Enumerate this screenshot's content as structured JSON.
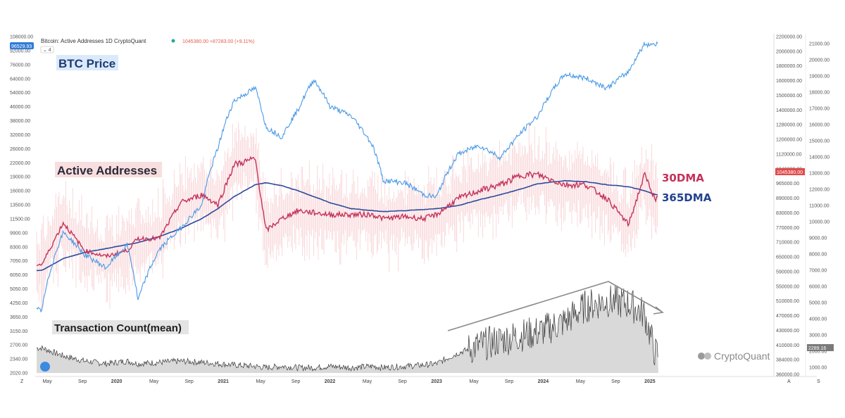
{
  "header": {
    "title": "Bitcoin: Active Addresses   1D   CryptoQuant",
    "change": "1045380.00 +87283.00 (+9.11%)",
    "price_badge": "96529.93",
    "indicator_count": "⌄ 4"
  },
  "labels": {
    "btc_price": "BTC Price",
    "active_addresses": "Active Addresses",
    "transaction_count": "Transaction Count(mean)",
    "ma30": "30DMA",
    "ma365": "365DMA"
  },
  "right_badges": {
    "active_addresses": "1045380.00",
    "transaction_count": "2289.16"
  },
  "watermark": "CryptoQuant",
  "footer": {
    "left": "Z",
    "auto": "A",
    "log": "S"
  },
  "colors": {
    "btc": "#4a9ae6",
    "ma30": "#c4325a",
    "ma365": "#2a4a9c",
    "daily": "#f3b3b8",
    "tx": "#3a3a3a",
    "trend": "#8a8a8a"
  },
  "chart_data": {
    "type": "line",
    "title": "Bitcoin: Active Addresses",
    "x_range": [
      "2019-04",
      "2025-01"
    ],
    "x_ticks": [
      "May",
      "Sep",
      "2020",
      "May",
      "Sep",
      "2021",
      "May",
      "Sep",
      "2022",
      "May",
      "Sep",
      "2023",
      "May",
      "Sep",
      "2024",
      "May",
      "Sep",
      "2025"
    ],
    "left_axis_ticks": [
      "108000.00",
      "92000.00",
      "76000.00",
      "64000.00",
      "54000.00",
      "46000.00",
      "38000.00",
      "32000.00",
      "26000.00",
      "22000.00",
      "19000.00",
      "16000.00",
      "13500.00",
      "11500.00",
      "9900.00",
      "8300.00",
      "7050.00",
      "6050.00",
      "5050.00",
      "4250.00",
      "3650.00",
      "3150.00",
      "2700.00",
      "2340.00",
      "2020.00"
    ],
    "right_axis_ticks": [
      "2200000.00",
      "2000000.00",
      "1800000.00",
      "1600000.00",
      "1500000.00",
      "1400000.00",
      "1280000.00",
      "1200000.00",
      "1120000.00",
      "1040000.00",
      "965000.00",
      "890000.00",
      "830000.00",
      "770000.00",
      "710000.00",
      "650000.00",
      "590000.00",
      "550000.00",
      "510000.00",
      "470000.00",
      "430000.00",
      "410000.00",
      "384000.00",
      "360000.00"
    ],
    "far_right_axis_ticks": [
      "21000.00",
      "20000.00",
      "19000.00",
      "18000.00",
      "17000.00",
      "16000.00",
      "15000.00",
      "14000.00",
      "13000.00",
      "12000.00",
      "11000.00",
      "10000.00",
      "9000.00",
      "8000.00",
      "7000.00",
      "6000.00",
      "5000.00",
      "4000.00",
      "3000.00",
      "2000.00",
      "1000.00"
    ],
    "x_decimal_years": [
      2019.3,
      2019.5,
      2019.7,
      2019.9,
      2020.1,
      2020.2,
      2020.4,
      2020.6,
      2020.8,
      2020.95,
      2021.1,
      2021.3,
      2021.4,
      2021.55,
      2021.7,
      2021.85,
      2022.0,
      2022.2,
      2022.4,
      2022.5,
      2022.7,
      2022.88,
      2023.0,
      2023.2,
      2023.4,
      2023.6,
      2023.8,
      2023.95,
      2024.2,
      2024.4,
      2024.6,
      2024.8,
      2024.95,
      2025.05
    ],
    "series": [
      {
        "name": "BTC Price",
        "unit": "USD",
        "values": [
          4500,
          11000,
          8500,
          7300,
          9500,
          5000,
          9000,
          11500,
          15000,
          29000,
          50000,
          58000,
          37000,
          33000,
          45000,
          64000,
          47000,
          42000,
          30000,
          20000,
          19500,
          17000,
          16500,
          27000,
          30000,
          26000,
          35000,
          42000,
          68000,
          65000,
          58000,
          70000,
          96000,
          96500
        ]
      },
      {
        "name": "Active Addresses 30DMA",
        "unit": "addresses",
        "values": [
          650000,
          860000,
          720000,
          690000,
          720000,
          780000,
          780000,
          960000,
          1000000,
          950000,
          1150000,
          1180000,
          820000,
          880000,
          920000,
          910000,
          900000,
          900000,
          900000,
          880000,
          890000,
          880000,
          900000,
          980000,
          1020000,
          1050000,
          1100000,
          1100000,
          1050000,
          1050000,
          980000,
          850000,
          1100000,
          980000
        ]
      },
      {
        "name": "Active Addresses 365DMA",
        "unit": "addresses",
        "values": [
          620000,
          680000,
          710000,
          730000,
          750000,
          760000,
          790000,
          830000,
          880000,
          930000,
          990000,
          1050000,
          1060000,
          1045000,
          1020000,
          990000,
          960000,
          930000,
          920000,
          915000,
          920000,
          925000,
          930000,
          945000,
          975000,
          1000000,
          1030000,
          1055000,
          1070000,
          1065000,
          1050000,
          1040000,
          1020000,
          1000000
        ]
      },
      {
        "name": "Transaction Count(mean)",
        "unit": "tx",
        "values": [
          3200,
          2900,
          2700,
          2600,
          2700,
          2600,
          2650,
          2700,
          2650,
          2600,
          2550,
          2500,
          2450,
          2500,
          2450,
          2450,
          2500,
          2450,
          2500,
          2450,
          2500,
          2550,
          2600,
          3000,
          3300,
          3500,
          3700,
          3800,
          4200,
          4800,
          5000,
          4900,
          4500,
          3000
        ]
      }
    ],
    "annotation": {
      "type": "trend-arrows",
      "description_hidden": true
    }
  }
}
